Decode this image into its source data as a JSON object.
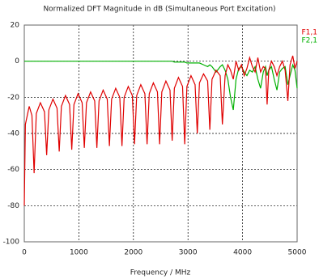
{
  "chart_data": {
    "type": "line",
    "title": "Normalized DFT Magnitude in dB (Simultaneous Port Excitation)",
    "xlabel": "Frequency / MHz",
    "xlim": [
      0,
      5000
    ],
    "xticks": [
      0,
      1000,
      2000,
      3000,
      4000,
      5000
    ],
    "ylim": [
      -100,
      20
    ],
    "yticks": [
      -100,
      -80,
      -60,
      -40,
      -20,
      0,
      20
    ],
    "grid": true,
    "x": [
      0,
      20,
      90,
      140,
      180,
      220,
      295,
      370,
      410,
      450,
      525,
      600,
      640,
      680,
      755,
      830,
      870,
      910,
      985,
      1060,
      1100,
      1140,
      1215,
      1290,
      1330,
      1370,
      1445,
      1520,
      1560,
      1600,
      1675,
      1750,
      1790,
      1830,
      1905,
      1980,
      2020,
      2060,
      2135,
      2210,
      2250,
      2290,
      2365,
      2440,
      2480,
      2520,
      2595,
      2670,
      2710,
      2750,
      2825,
      2900,
      2940,
      2980,
      3055,
      3130,
      3170,
      3210,
      3285,
      3360,
      3400,
      3440,
      3515,
      3590,
      3630,
      3680,
      3730,
      3780,
      3830,
      3880,
      3930,
      3980,
      4030,
      4080,
      4130,
      4180,
      4230,
      4280,
      4330,
      4380,
      4420,
      4450,
      4480,
      4530,
      4580,
      4630,
      4680,
      4730,
      4780,
      4830,
      4870,
      4920,
      4960,
      5000
    ],
    "series": [
      {
        "name": "F2,1",
        "color": "#00b000",
        "values": [
          0,
          0,
          0,
          0,
          0,
          0,
          0,
          0,
          0,
          0,
          0,
          0,
          0,
          0,
          0,
          0,
          0,
          0,
          0,
          0,
          0,
          0,
          0,
          0,
          0,
          0,
          0,
          0,
          0,
          0,
          0,
          0,
          0,
          0,
          0,
          0,
          0,
          0,
          0,
          0,
          0,
          0,
          0,
          0,
          0,
          0,
          0,
          0,
          0,
          -0.5,
          -0.5,
          -0.5,
          -0.5,
          -1,
          -1,
          -1,
          -1,
          -1,
          -2,
          -3,
          -2,
          -3,
          -6,
          -3,
          -2,
          -5,
          -10,
          -20,
          -27,
          -10,
          -4,
          -3,
          -6,
          -8,
          -5,
          -6,
          -3,
          -10,
          -15,
          -6,
          -3,
          -8,
          -5,
          -3,
          -10,
          -16,
          -6,
          -4,
          -3,
          -13,
          -8,
          -2,
          -5,
          -15
        ]
      },
      {
        "name": "F1,1",
        "color": "#e00000",
        "values": [
          -80,
          -35,
          -25,
          -30,
          -62,
          -29,
          -23,
          -28,
          -52,
          -27,
          -21,
          -26,
          -50,
          -25,
          -19,
          -24,
          -49,
          -24,
          -18,
          -23,
          -48,
          -23,
          -17,
          -22,
          -48,
          -22,
          -16,
          -21,
          -47,
          -21,
          -15,
          -20,
          -47,
          -20,
          -14,
          -19,
          -46,
          -19,
          -13,
          -18,
          -46,
          -18,
          -12,
          -17,
          -46,
          -17,
          -11,
          -16,
          -44,
          -15,
          -9,
          -14,
          -46,
          -14,
          -8,
          -13,
          -40,
          -12,
          -7,
          -11,
          -38,
          -10,
          -5,
          -8,
          -35,
          -8,
          -2,
          -5,
          -10,
          0,
          -5,
          -2,
          -8,
          -4,
          2,
          -3,
          -6,
          2,
          -6,
          -3,
          -4,
          -24,
          -5,
          0,
          -3,
          -8,
          -3,
          0,
          -5,
          -22,
          -2,
          3,
          -4,
          0
        ]
      }
    ]
  }
}
